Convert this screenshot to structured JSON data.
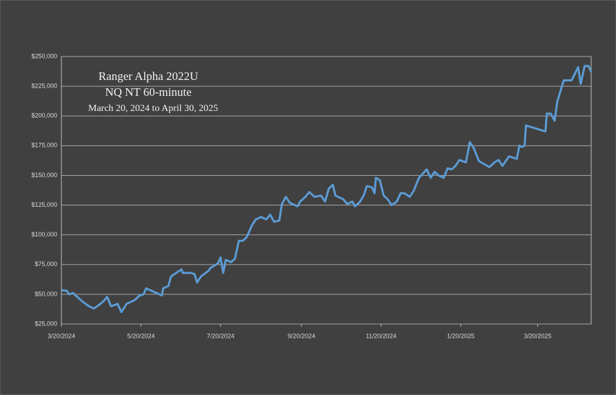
{
  "chart_data": {
    "type": "line",
    "title_lines": [
      "Ranger Alpha 2022U",
      "NQ NT 60-minute",
      "March 20, 2024 to April 30, 2025"
    ],
    "x": [
      "3/20/2024",
      "3/24/2024",
      "3/26/2024",
      "3/29/2024",
      "4/1/2024",
      "4/5/2024",
      "4/10/2024",
      "4/14/2024",
      "4/19/2024",
      "4/22/2024",
      "4/24/2024",
      "4/27/2024",
      "4/30/2024",
      "5/2/2024",
      "5/5/2024",
      "5/9/2024",
      "5/13/2024",
      "5/15/2024",
      "5/19/2024",
      "5/22/2024",
      "5/24/2024",
      "6/5/2024",
      "6/6/2024",
      "6/10/2024",
      "6/12/2024",
      "6/16/2024",
      "6/20/2024",
      "6/21/2024",
      "6/27/2024",
      "6/30/2024",
      "7/2/2024",
      "7/5/2024",
      "7/11/2024",
      "7/12/2024",
      "7/18/2024",
      "7/20/2024",
      "7/22/2024",
      "7/24/2024",
      "7/28/2024",
      "7/31/2024",
      "8/3/2024",
      "8/6/2024",
      "8/9/2024",
      "8/13/2024",
      "8/16/2024",
      "8/20/2024",
      "8/24/2024",
      "8/27/2024",
      "8/30/2024",
      "9/3/2024",
      "9/5/2024",
      "9/8/2024",
      "9/11/2024",
      "9/15/2024",
      "9/17/2024",
      "9/19/2024",
      "9/23/2024",
      "9/26/2024",
      "9/30/2024",
      "10/5/2024",
      "10/8/2024",
      "10/11/2024",
      "10/14/2024",
      "10/16/2024",
      "10/22/2024",
      "10/25/2024",
      "10/29/2024",
      "10/31/2024",
      "11/4/2024",
      "11/7/2024",
      "11/9/2024",
      "11/13/2024",
      "11/15/2024",
      "11/16/2024",
      "11/19/2024",
      "11/22/2024",
      "11/25/2024",
      "11/28/2024",
      "12/2/2024",
      "12/5/2024",
      "12/8/2024",
      "12/12/2024",
      "12/15/2024",
      "12/19/2024",
      "12/25/2024",
      "12/28/2024",
      "12/31/2024",
      "1/3/2025",
      "1/7/2025",
      "1/10/2025",
      "1/13/2025",
      "1/16/2025",
      "1/19/2025",
      "1/24/2025",
      "1/27/2025",
      "1/30/2025",
      "2/3/2025",
      "2/11/2025",
      "2/15/2025",
      "2/18/2025",
      "2/21/2025",
      "2/26/2025",
      "3/4/2025",
      "3/6/2025",
      "3/8/2025",
      "3/10/2025",
      "3/11/2025",
      "3/17/2025",
      "3/26/2025",
      "3/27/2025",
      "3/30/2025",
      "4/2/2025",
      "4/4/2025",
      "4/9/2025",
      "4/15/2025",
      "4/20/2025",
      "4/22/2025",
      "4/25/2025",
      "4/28/2025",
      "4/30/2025"
    ],
    "values": [
      53400,
      53000,
      50000,
      51000,
      48000,
      44000,
      40000,
      38000,
      42000,
      45000,
      48000,
      40000,
      41000,
      42000,
      35000,
      42000,
      44000,
      45000,
      49000,
      50000,
      55000,
      49000,
      55000,
      57000,
      65000,
      68000,
      71000,
      68000,
      68000,
      67000,
      60000,
      65000,
      70000,
      72000,
      76000,
      81000,
      68000,
      79000,
      77000,
      80000,
      95000,
      95000,
      98000,
      108000,
      113000,
      115000,
      113000,
      117000,
      111000,
      112000,
      126000,
      132000,
      127000,
      125000,
      124000,
      128000,
      132000,
      136000,
      132000,
      133000,
      128000,
      139000,
      142000,
      133000,
      130000,
      126000,
      128000,
      124000,
      128000,
      134000,
      141000,
      140000,
      135000,
      148000,
      146000,
      133000,
      130000,
      125000,
      128000,
      135000,
      135000,
      132000,
      137000,
      148000,
      155000,
      148000,
      153000,
      150000,
      148000,
      156000,
      155000,
      158000,
      163000,
      161000,
      178000,
      173000,
      162000,
      157000,
      161000,
      163000,
      158000,
      166000,
      164000,
      175000,
      174000,
      175000,
      192000,
      190000,
      187000,
      202000,
      202000,
      196000,
      212000,
      230000,
      230000,
      241000,
      227000,
      242000,
      242000,
      237000
    ],
    "color": "#5b9bd5",
    "xlim": [
      "3/20/2024",
      "4/30/2025"
    ],
    "xticks": [
      "3/20/2024",
      "5/20/2024",
      "7/20/2024",
      "9/20/2024",
      "11/20/2024",
      "1/20/2025",
      "3/20/2025"
    ],
    "ylim": [
      25000,
      250000
    ],
    "yticks": [
      {
        "value": 25000,
        "label": "$25,000"
      },
      {
        "value": 50000,
        "label": "$50,000"
      },
      {
        "value": 75000,
        "label": "$75,000"
      },
      {
        "value": 100000,
        "label": "$100,000"
      },
      {
        "value": 125000,
        "label": "$125,000"
      },
      {
        "value": 150000,
        "label": "$150,000"
      },
      {
        "value": 175000,
        "label": "$175,000"
      },
      {
        "value": 200000,
        "label": "$200,000"
      },
      {
        "value": 225000,
        "label": "$225,000"
      },
      {
        "value": 250000,
        "label": "$250,000"
      }
    ],
    "grid": true
  }
}
